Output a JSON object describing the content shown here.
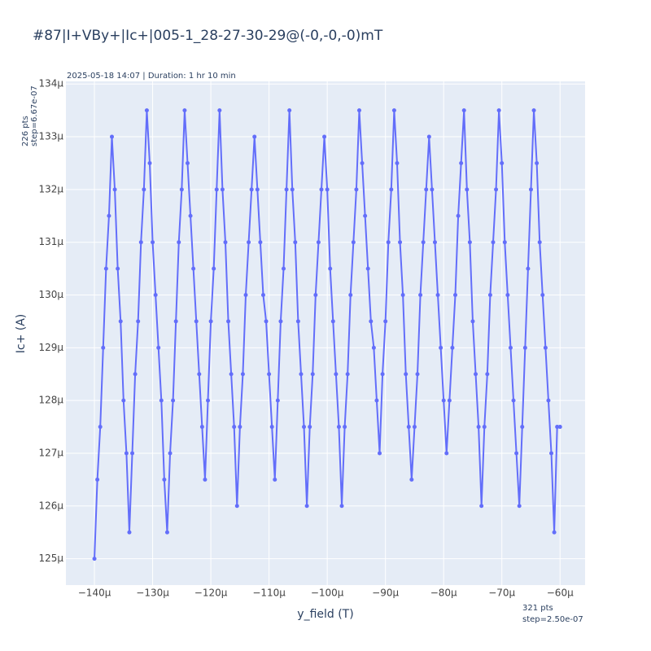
{
  "chart_data": {
    "type": "line",
    "title": "#87|I+VBy+|Ic+|005-1_28-27-30-29@(-0,-0,-0)mT",
    "subtitle": "2025-05-18 14:07 | Duration: 1 hr 10 min",
    "x_label": "y_field (T)",
    "y_label": "Ic+ (A)",
    "annotations": [
      "226 pts",
      "step=6.67e-07",
      "321 pts",
      "step=2.50e-07"
    ],
    "color": "#636efa",
    "grid": true,
    "xlim": [
      -0.0001449,
      -5.57e-05
    ],
    "ylim": [
      0.0001245,
      0.00013405
    ],
    "xticks": [
      {
        "value": -0.00014,
        "label": "−140μ"
      },
      {
        "value": -0.00013,
        "label": "−130μ"
      },
      {
        "value": -0.00012,
        "label": "−120μ"
      },
      {
        "value": -0.00011,
        "label": "−110μ"
      },
      {
        "value": -0.0001,
        "label": "−100μ"
      },
      {
        "value": -9e-05,
        "label": "−90μ"
      },
      {
        "value": -8e-05,
        "label": "−80μ"
      },
      {
        "value": -7e-05,
        "label": "−70μ"
      },
      {
        "value": -6e-05,
        "label": "−60μ"
      }
    ],
    "yticks": [
      {
        "value": 0.000125,
        "label": "125μ"
      },
      {
        "value": 0.000126,
        "label": "126μ"
      },
      {
        "value": 0.000127,
        "label": "127μ"
      },
      {
        "value": 0.000128,
        "label": "128μ"
      },
      {
        "value": 0.000129,
        "label": "129μ"
      },
      {
        "value": 0.00013,
        "label": "130μ"
      },
      {
        "value": 0.000131,
        "label": "131μ"
      },
      {
        "value": 0.000132,
        "label": "132μ"
      },
      {
        "value": 0.000133,
        "label": "133μ"
      },
      {
        "value": 0.000134,
        "label": "134μ"
      }
    ],
    "x": [
      -0.00014,
      -0.0001395,
      -0.000139,
      -0.0001385,
      -0.000138,
      -0.0001375,
      -0.000137,
      -0.0001365,
      -0.000136,
      -0.0001355,
      -0.000135,
      -0.0001345,
      -0.000134,
      -0.0001335,
      -0.000133,
      -0.0001325,
      -0.000132,
      -0.0001315,
      -0.000131,
      -0.0001305,
      -0.00013,
      -0.0001295,
      -0.000129,
      -0.0001285,
      -0.000128,
      -0.0001275,
      -0.000127,
      -0.0001265,
      -0.000126,
      -0.0001255,
      -0.000125,
      -0.0001245,
      -0.000124,
      -0.0001235,
      -0.000123,
      -0.0001225,
      -0.000122,
      -0.0001215,
      -0.000121,
      -0.0001205,
      -0.00012,
      -0.0001195,
      -0.000119,
      -0.0001185,
      -0.000118,
      -0.0001175,
      -0.000117,
      -0.0001165,
      -0.000116,
      -0.0001155,
      -0.000115,
      -0.0001145,
      -0.000114,
      -0.0001135,
      -0.000113,
      -0.0001125,
      -0.000112,
      -0.0001115,
      -0.000111,
      -0.0001105,
      -0.00011,
      -0.0001095,
      -0.000109,
      -0.0001085,
      -0.000108,
      -0.0001075,
      -0.000107,
      -0.0001065,
      -0.000106,
      -0.0001055,
      -0.000105,
      -0.0001045,
      -0.000104,
      -0.0001035,
      -0.000103,
      -0.0001025,
      -0.000102,
      -0.0001015,
      -0.000101,
      -0.0001005,
      -0.0001,
      -9.95e-05,
      -9.9e-05,
      -9.85e-05,
      -9.8e-05,
      -9.75e-05,
      -9.7e-05,
      -9.65e-05,
      -9.6e-05,
      -9.55e-05,
      -9.5e-05,
      -9.45e-05,
      -9.4e-05,
      -9.35e-05,
      -9.3e-05,
      -9.25e-05,
      -9.2e-05,
      -9.15e-05,
      -9.1e-05,
      -9.05e-05,
      -9e-05,
      -8.95e-05,
      -8.9e-05,
      -8.85e-05,
      -8.8e-05,
      -8.75e-05,
      -8.7e-05,
      -8.65e-05,
      -8.6e-05,
      -8.55e-05,
      -8.5e-05,
      -8.45e-05,
      -8.4e-05,
      -8.35e-05,
      -8.3e-05,
      -8.25e-05,
      -8.2e-05,
      -8.15e-05,
      -8.1e-05,
      -8.05e-05,
      -8e-05,
      -7.95e-05,
      -7.9e-05,
      -7.85e-05,
      -7.8e-05,
      -7.75e-05,
      -7.7e-05,
      -7.65e-05,
      -7.6e-05,
      -7.55e-05,
      -7.5e-05,
      -7.45e-05,
      -7.4e-05,
      -7.35e-05,
      -7.3e-05,
      -7.25e-05,
      -7.2e-05,
      -7.15e-05,
      -7.1e-05,
      -7.05e-05,
      -7e-05,
      -6.95e-05,
      -6.9e-05,
      -6.85e-05,
      -6.8e-05,
      -6.75e-05,
      -6.7e-05,
      -6.65e-05,
      -6.6e-05,
      -6.55e-05,
      -6.5e-05,
      -6.45e-05,
      -6.4e-05,
      -6.35e-05,
      -6.3e-05,
      -6.25e-05,
      -6.2e-05,
      -6.15e-05,
      -6.1e-05,
      -6.05e-05,
      -6e-05
    ],
    "values": [
      0.000125,
      0.0001265,
      0.0001275,
      0.000129,
      0.0001305,
      0.0001315,
      0.000133,
      0.000132,
      0.0001305,
      0.0001295,
      0.000128,
      0.000127,
      0.0001255,
      0.000127,
      0.0001285,
      0.0001295,
      0.000131,
      0.000132,
      0.0001335,
      0.0001325,
      0.000131,
      0.00013,
      0.000129,
      0.000128,
      0.0001265,
      0.0001255,
      0.000127,
      0.000128,
      0.0001295,
      0.000131,
      0.000132,
      0.0001335,
      0.0001325,
      0.0001315,
      0.0001305,
      0.0001295,
      0.0001285,
      0.0001275,
      0.0001265,
      0.000128,
      0.0001295,
      0.0001305,
      0.000132,
      0.0001335,
      0.000132,
      0.000131,
      0.0001295,
      0.0001285,
      0.0001275,
      0.000126,
      0.0001275,
      0.0001285,
      0.00013,
      0.000131,
      0.000132,
      0.000133,
      0.000132,
      0.000131,
      0.00013,
      0.0001295,
      0.0001285,
      0.0001275,
      0.0001265,
      0.000128,
      0.0001295,
      0.0001305,
      0.000132,
      0.0001335,
      0.000132,
      0.000131,
      0.0001295,
      0.0001285,
      0.0001275,
      0.000126,
      0.0001275,
      0.0001285,
      0.00013,
      0.000131,
      0.000132,
      0.000133,
      0.000132,
      0.0001305,
      0.0001295,
      0.0001285,
      0.0001275,
      0.000126,
      0.0001275,
      0.0001285,
      0.00013,
      0.000131,
      0.000132,
      0.0001335,
      0.0001325,
      0.0001315,
      0.0001305,
      0.0001295,
      0.000129,
      0.000128,
      0.000127,
      0.0001285,
      0.0001295,
      0.000131,
      0.000132,
      0.0001335,
      0.0001325,
      0.000131,
      0.00013,
      0.0001285,
      0.0001275,
      0.0001265,
      0.0001275,
      0.0001285,
      0.00013,
      0.000131,
      0.000132,
      0.000133,
      0.000132,
      0.000131,
      0.00013,
      0.000129,
      0.000128,
      0.000127,
      0.000128,
      0.000129,
      0.00013,
      0.0001315,
      0.0001325,
      0.0001335,
      0.000132,
      0.000131,
      0.0001295,
      0.0001285,
      0.0001275,
      0.000126,
      0.0001275,
      0.0001285,
      0.00013,
      0.000131,
      0.000132,
      0.0001335,
      0.0001325,
      0.000131,
      0.00013,
      0.000129,
      0.000128,
      0.000127,
      0.000126,
      0.0001275,
      0.000129,
      0.0001305,
      0.000132,
      0.0001335,
      0.0001325,
      0.000131,
      0.00013,
      0.000129,
      0.000128,
      0.000127,
      0.0001255,
      0.0001275,
      0.0001275
    ]
  }
}
